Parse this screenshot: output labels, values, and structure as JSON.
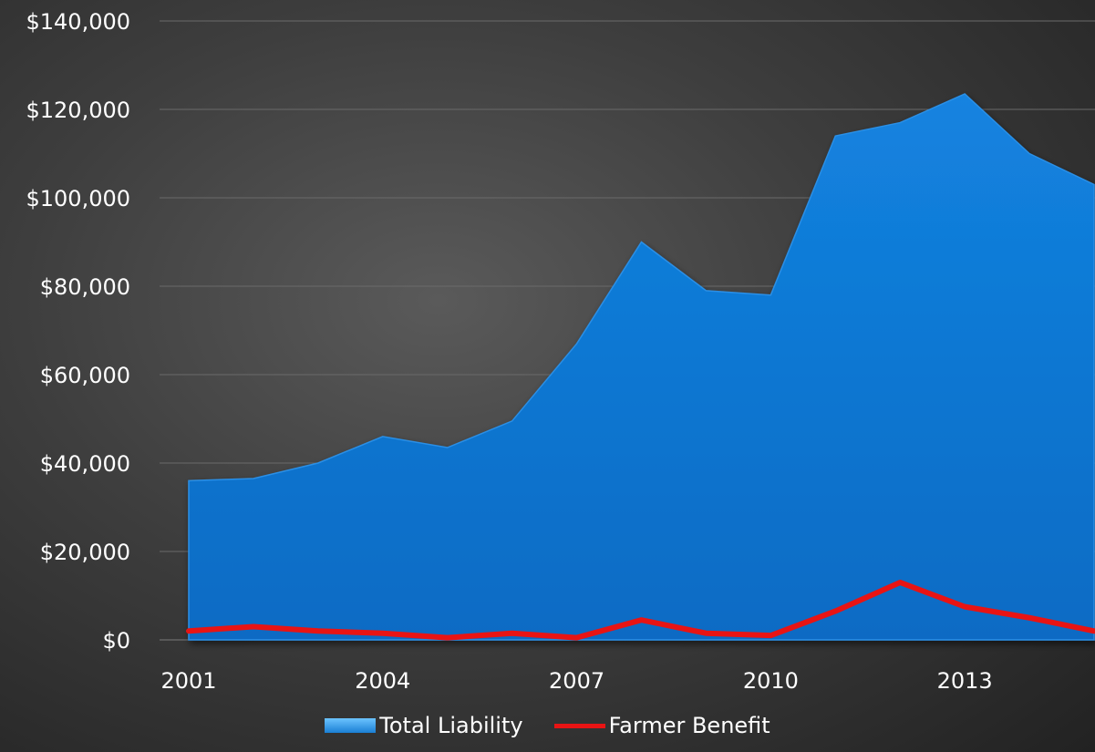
{
  "chart_data": {
    "type": "area",
    "x": [
      2001,
      2002,
      2003,
      2004,
      2005,
      2006,
      2007,
      2008,
      2009,
      2010,
      2011,
      2012,
      2013,
      2014,
      2015
    ],
    "x_tick_labels": [
      "2001",
      "2004",
      "2007",
      "2010",
      "2013"
    ],
    "y_tick_labels": [
      "$0",
      "$20,000",
      "$40,000",
      "$60,000",
      "$80,000",
      "$100,000",
      "$120,000",
      "$140,000"
    ],
    "ylim": [
      0,
      140000
    ],
    "grid": "horizontal",
    "legend_placement": "bottom",
    "series": [
      {
        "name": "Total Liability",
        "type": "area",
        "color": "#0e6fc9",
        "values": [
          36000,
          36500,
          40000,
          46000,
          43500,
          49500,
          67000,
          90000,
          79000,
          78000,
          114000,
          117000,
          123500,
          110000,
          103000
        ]
      },
      {
        "name": "Farmer Benefit",
        "type": "line",
        "color": "#e81414",
        "values": [
          2000,
          3000,
          2000,
          1500,
          500,
          1500,
          500,
          4500,
          1500,
          1000,
          6500,
          13000,
          7500,
          5000,
          2000
        ]
      }
    ]
  }
}
